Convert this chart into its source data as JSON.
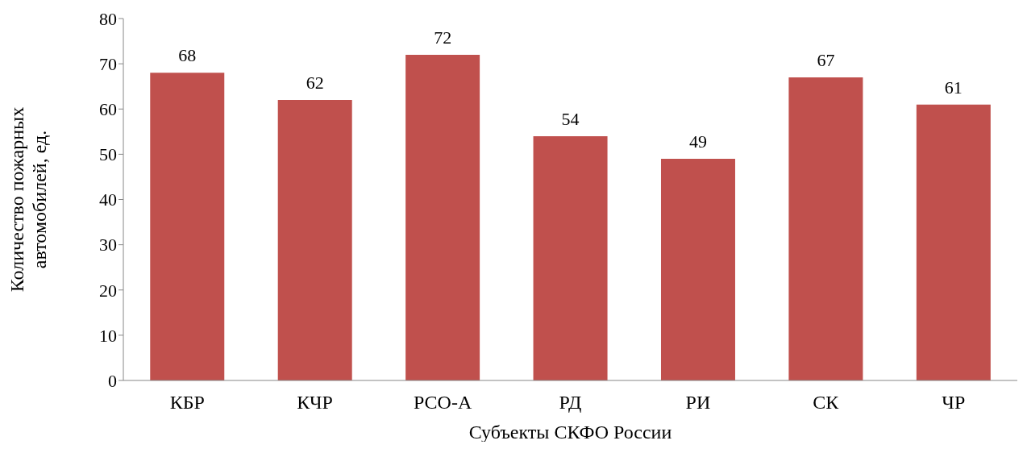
{
  "chart_data": {
    "type": "bar",
    "xlabel": "Субъекты СКФО России",
    "ylabel": "Количество пожарных автомобилей, ед.",
    "categories": [
      "КБР",
      "КЧР",
      "РСО-А",
      "РД",
      "РИ",
      "СК",
      "ЧР"
    ],
    "values": [
      68,
      62,
      72,
      54,
      49,
      67,
      61
    ],
    "color": "#c0504d",
    "ylim": [
      0,
      80
    ],
    "yticks": [
      0,
      10,
      20,
      30,
      40,
      50,
      60,
      70,
      80
    ],
    "grid": false,
    "legend": false,
    "data_labels": true
  }
}
